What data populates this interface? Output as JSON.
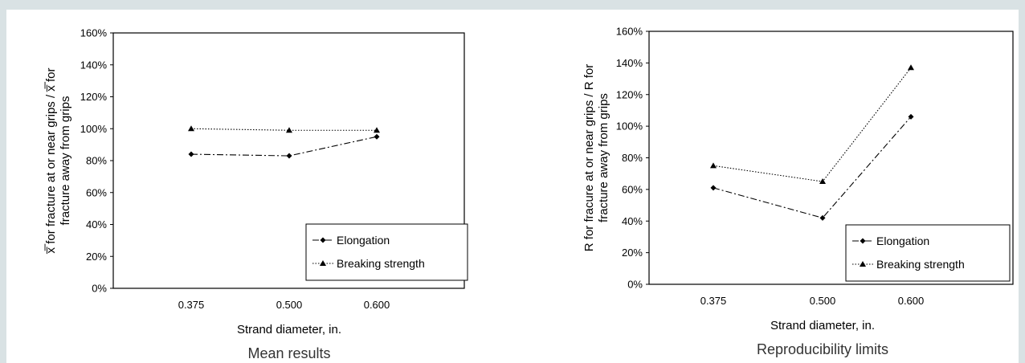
{
  "chart_data": [
    {
      "type": "line",
      "caption": "Mean results",
      "xlabel": "Strand diameter, in.",
      "ylabel_line1": "x̅̅ for fracture at or near grips / x̅̅ for",
      "ylabel_line2": "fracture away from grips",
      "categories": [
        "0.375",
        "0.500",
        "0.600"
      ],
      "ylim": [
        0,
        160
      ],
      "yticks": [
        "0%",
        "20%",
        "40%",
        "60%",
        "80%",
        "100%",
        "120%",
        "140%",
        "160%"
      ],
      "legend_position": "bottom-right",
      "series": [
        {
          "name": "Elongation",
          "values": [
            84,
            83,
            95
          ],
          "marker": "diamond",
          "dash": "8 3 2 3"
        },
        {
          "name": "Breaking strength",
          "values": [
            100,
            99,
            99
          ],
          "marker": "triangle",
          "dash": "1.5 2"
        }
      ]
    },
    {
      "type": "line",
      "caption": "Reproducibility limits",
      "xlabel": "Strand diameter, in.",
      "ylabel_line1": "R for fracure at or near grips / R for",
      "ylabel_line2": "fracture away from grips",
      "categories": [
        "0.375",
        "0.500",
        "0.600"
      ],
      "ylim": [
        0,
        160
      ],
      "yticks": [
        "0%",
        "20%",
        "40%",
        "60%",
        "80%",
        "100%",
        "120%",
        "140%",
        "160%"
      ],
      "legend_position": "bottom-right",
      "series": [
        {
          "name": "Elongation",
          "values": [
            61,
            42,
            106
          ],
          "marker": "diamond",
          "dash": "8 3 2 3"
        },
        {
          "name": "Breaking strength",
          "values": [
            75,
            65,
            137
          ],
          "marker": "triangle",
          "dash": "1.5 2"
        }
      ]
    }
  ]
}
